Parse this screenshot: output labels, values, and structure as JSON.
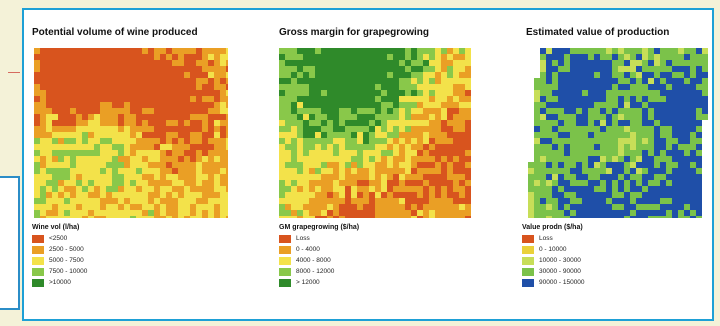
{
  "panels": [
    {
      "title": "Potential volume of wine produced",
      "legend_title": "Wine vol (l/ha)",
      "palette": [
        "#d8541e",
        "#ea9f25",
        "#f3e24a",
        "#89c84a",
        "#2f8a2a"
      ],
      "legend": [
        {
          "label": "<2500",
          "color": "#d8541e"
        },
        {
          "label": "2500 - 5000",
          "color": "#ea9f25"
        },
        {
          "label": "5000 - 7500",
          "color": "#f3e24a"
        },
        {
          "label": "7500 - 10000",
          "color": "#89c84a"
        },
        {
          "label": ">10000",
          "color": "#2f8a2a"
        }
      ]
    },
    {
      "title": "Gross margin for grapegrowing",
      "legend_title": "GM grapegrowing ($/ha)",
      "palette": [
        "#d8541e",
        "#ea9f25",
        "#f3e24a",
        "#89c84a",
        "#2f8a2a"
      ],
      "legend": [
        {
          "label": "Loss",
          "color": "#d8541e"
        },
        {
          "label": "0 - 4000",
          "color": "#ea9f25"
        },
        {
          "label": "4000 - 8000",
          "color": "#f3e24a"
        },
        {
          "label": "8000 - 12000",
          "color": "#89c84a"
        },
        {
          "label": "> 12000",
          "color": "#2f8a2a"
        }
      ]
    },
    {
      "title": "Estimated value of production",
      "legend_title": "Value prodn ($/ha)",
      "palette": [
        "#d8541e",
        "#ead13a",
        "#c7de58",
        "#7bc24a",
        "#1f4fa8"
      ],
      "legend": [
        {
          "label": "Loss",
          "color": "#d8541e"
        },
        {
          "label": "0 - 10000",
          "color": "#ead13a"
        },
        {
          "label": "10000 - 30000",
          "color": "#c7de58"
        },
        {
          "label": "30000 - 90000",
          "color": "#7bc24a"
        },
        {
          "label": "90000 - 150000",
          "color": "#1f4fa8"
        }
      ]
    }
  ]
}
